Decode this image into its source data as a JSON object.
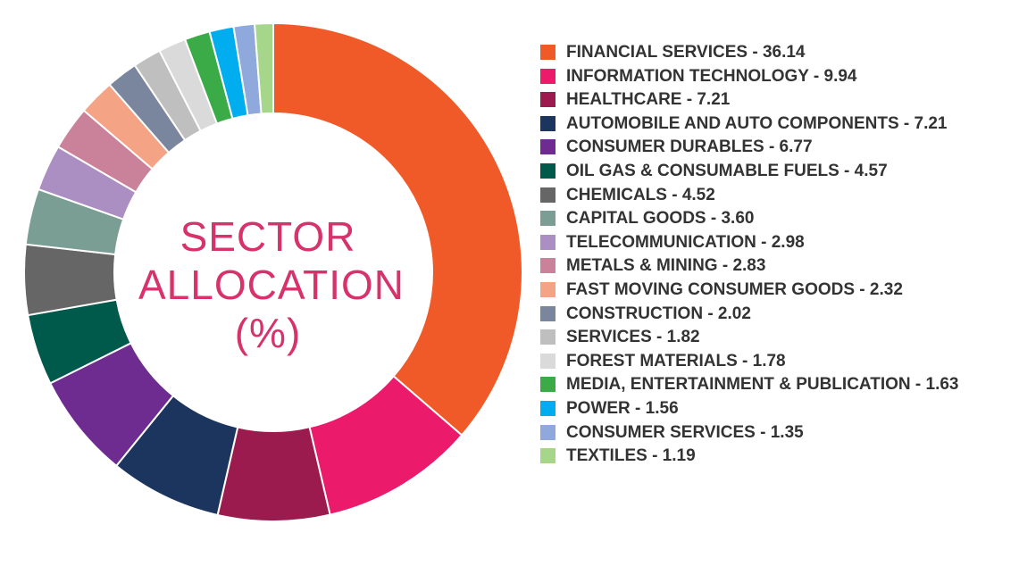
{
  "chart_data": {
    "type": "pie",
    "style": "donut",
    "title": [
      "SECTOR",
      "ALLOCATION",
      "(%)"
    ],
    "legend_position": "right",
    "categories": [
      "FINANCIAL SERVICES - 36.14",
      "INFORMATION TECHNOLOGY - 9.94",
      "HEALTHCARE - 7.21",
      "AUTOMOBILE AND AUTO COMPONENTS - 7.21",
      "CONSUMER DURABLES - 6.77",
      "OIL GAS & CONSUMABLE FUELS - 4.57",
      "CHEMICALS - 4.52",
      "CAPITAL GOODS - 3.60",
      "TELECOMMUNICATION - 2.98",
      "METALS & MINING - 2.83",
      "FAST MOVING CONSUMER GOODS - 2.32",
      "CONSTRUCTION - 2.02",
      "SERVICES - 1.82",
      "FOREST MATERIALS - 1.78",
      "MEDIA, ENTERTAINMENT & PUBLICATION - 1.63",
      "POWER - 1.56",
      "CONSUMER SERVICES - 1.35",
      "TEXTILES - 1.19"
    ],
    "values": [
      36.14,
      9.94,
      7.21,
      7.21,
      6.77,
      4.57,
      4.52,
      3.6,
      2.98,
      2.83,
      2.32,
      2.02,
      1.82,
      1.78,
      1.63,
      1.56,
      1.35,
      1.19
    ],
    "colors": [
      "#f05a28",
      "#ec1a6a",
      "#9b1b4e",
      "#1c355e",
      "#6e2c91",
      "#005a4c",
      "#666666",
      "#7a9e93",
      "#ab8fc3",
      "#c98299",
      "#f4a385",
      "#7a869e",
      "#bfbfbf",
      "#dadada",
      "#3bab48",
      "#00aeef",
      "#8fa9dc",
      "#a6d68a"
    ]
  }
}
